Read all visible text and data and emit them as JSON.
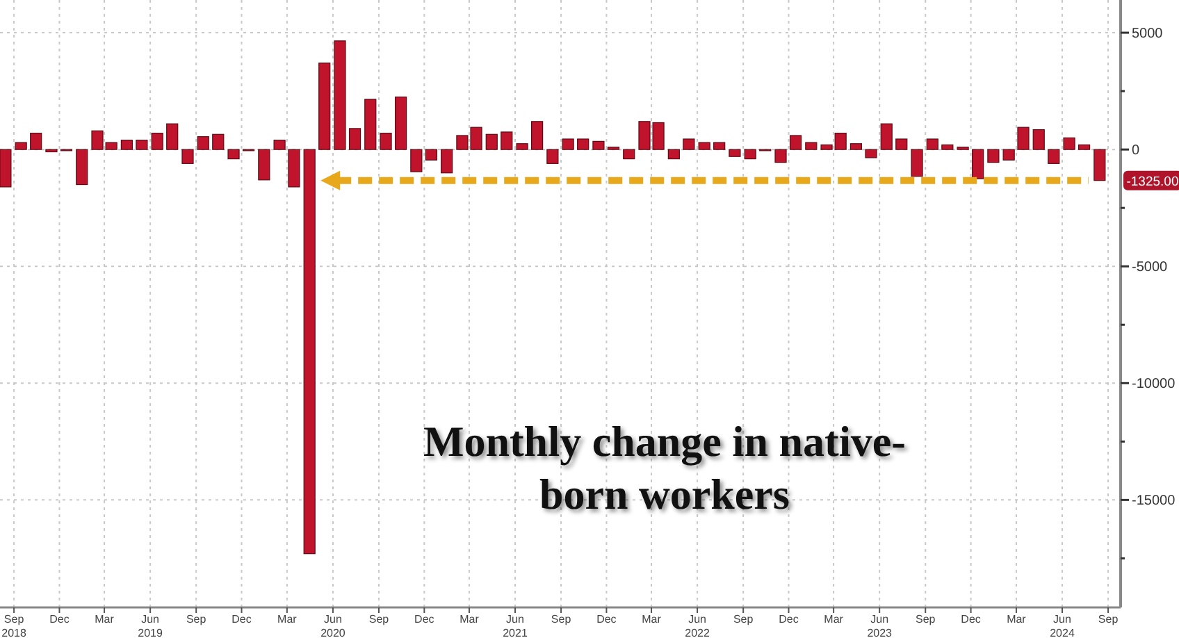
{
  "chart_data": {
    "type": "bar",
    "title": "Monthly change in native-born workers",
    "x": [
      "2018-08-15",
      "2018-09-15",
      "2018-10-15",
      "2018-11-15",
      "2018-12-15",
      "2019-01-15",
      "2019-02-15",
      "2019-03-15",
      "2019-04-15",
      "2019-05-15",
      "2019-06-15",
      "2019-07-15",
      "2019-08-15",
      "2019-09-15",
      "2019-10-15",
      "2019-11-15",
      "2019-12-15",
      "2020-01-15",
      "2020-02-15",
      "2020-03-15",
      "2020-04-15",
      "2020-05-15",
      "2020-06-15",
      "2020-07-15",
      "2020-08-15",
      "2020-09-15",
      "2020-10-15",
      "2020-11-15",
      "2020-12-15",
      "2021-01-15",
      "2021-02-15",
      "2021-03-15",
      "2021-04-15",
      "2021-05-15",
      "2021-06-15",
      "2021-07-15",
      "2021-08-15",
      "2021-09-15",
      "2021-10-15",
      "2021-11-15",
      "2021-12-15",
      "2022-01-15",
      "2022-02-15",
      "2022-03-15",
      "2022-04-15",
      "2022-05-15",
      "2022-06-15",
      "2022-07-15",
      "2022-08-15",
      "2022-09-15",
      "2022-10-15",
      "2022-11-15",
      "2022-12-15",
      "2023-01-15",
      "2023-02-15",
      "2023-03-15",
      "2023-04-15",
      "2023-05-15",
      "2023-06-15",
      "2023-07-15",
      "2023-08-15",
      "2023-09-15",
      "2023-10-15",
      "2023-11-15",
      "2023-12-15",
      "2024-01-15",
      "2024-02-15",
      "2024-03-15",
      "2024-04-15",
      "2024-05-15",
      "2024-06-15",
      "2024-07-15",
      "2024-08-15"
    ],
    "values": [
      -1600,
      300,
      700,
      -100,
      -50,
      -1500,
      800,
      300,
      400,
      400,
      700,
      1100,
      -600,
      550,
      650,
      -400,
      -50,
      -1300,
      400,
      -1600,
      -17300,
      3700,
      4650,
      900,
      2150,
      700,
      2250,
      -950,
      -450,
      -1000,
      600,
      950,
      650,
      750,
      250,
      1200,
      -600,
      450,
      450,
      350,
      100,
      -400,
      1200,
      1150,
      -400,
      450,
      300,
      300,
      -300,
      -400,
      -50,
      -550,
      600,
      300,
      200,
      700,
      250,
      -350,
      1100,
      450,
      -1150,
      450,
      200,
      100,
      -1250,
      -550,
      -450,
      950,
      850,
      -600,
      500,
      200,
      -1325
    ],
    "color": "#c0142c",
    "xlim": [
      "2018-08-04",
      "2024-09-26"
    ],
    "xticks": [
      {
        "value": "2018-09",
        "label": "Sep\n2018"
      },
      {
        "value": "2018-12",
        "label": "Dec"
      },
      {
        "value": "2019-03",
        "label": "Mar"
      },
      {
        "value": "2019-06",
        "label": "Jun\n2019"
      },
      {
        "value": "2019-09",
        "label": "Sep"
      },
      {
        "value": "2019-12",
        "label": "Dec"
      },
      {
        "value": "2020-03",
        "label": "Mar"
      },
      {
        "value": "2020-06",
        "label": "Jun\n2020"
      },
      {
        "value": "2020-09",
        "label": "Sep"
      },
      {
        "value": "2020-12",
        "label": "Dec"
      },
      {
        "value": "2021-03",
        "label": "Mar"
      },
      {
        "value": "2021-06",
        "label": "Jun\n2021"
      },
      {
        "value": "2021-09",
        "label": "Sep"
      },
      {
        "value": "2021-12",
        "label": "Dec"
      },
      {
        "value": "2022-03",
        "label": "Mar"
      },
      {
        "value": "2022-06",
        "label": "Jun\n2022"
      },
      {
        "value": "2022-09",
        "label": "Sep"
      },
      {
        "value": "2022-12",
        "label": "Dec"
      },
      {
        "value": "2023-03",
        "label": "Mar"
      },
      {
        "value": "2023-06",
        "label": "Jun\n2023"
      },
      {
        "value": "2023-09",
        "label": "Sep"
      },
      {
        "value": "2023-12",
        "label": "Dec"
      },
      {
        "value": "2024-03",
        "label": "Mar"
      },
      {
        "value": "2024-06",
        "label": "Jun\n2024"
      },
      {
        "value": "2024-09",
        "label": "Sep"
      }
    ],
    "ylim": [
      -19600,
      6400
    ],
    "yticks": [
      5000,
      {
        "value": 2500,
        "label": null
      },
      0,
      {
        "value": -2500,
        "label": null
      },
      -5000,
      {
        "value": -7500,
        "label": null
      },
      -10000,
      {
        "value": -12500,
        "label": null
      },
      -15000,
      {
        "value": -17500,
        "label": null
      }
    ],
    "grid": true,
    "annotations": [
      {
        "text": "-1325.00",
        "x": "2024-08-15",
        "y": -1325
      }
    ]
  }
}
